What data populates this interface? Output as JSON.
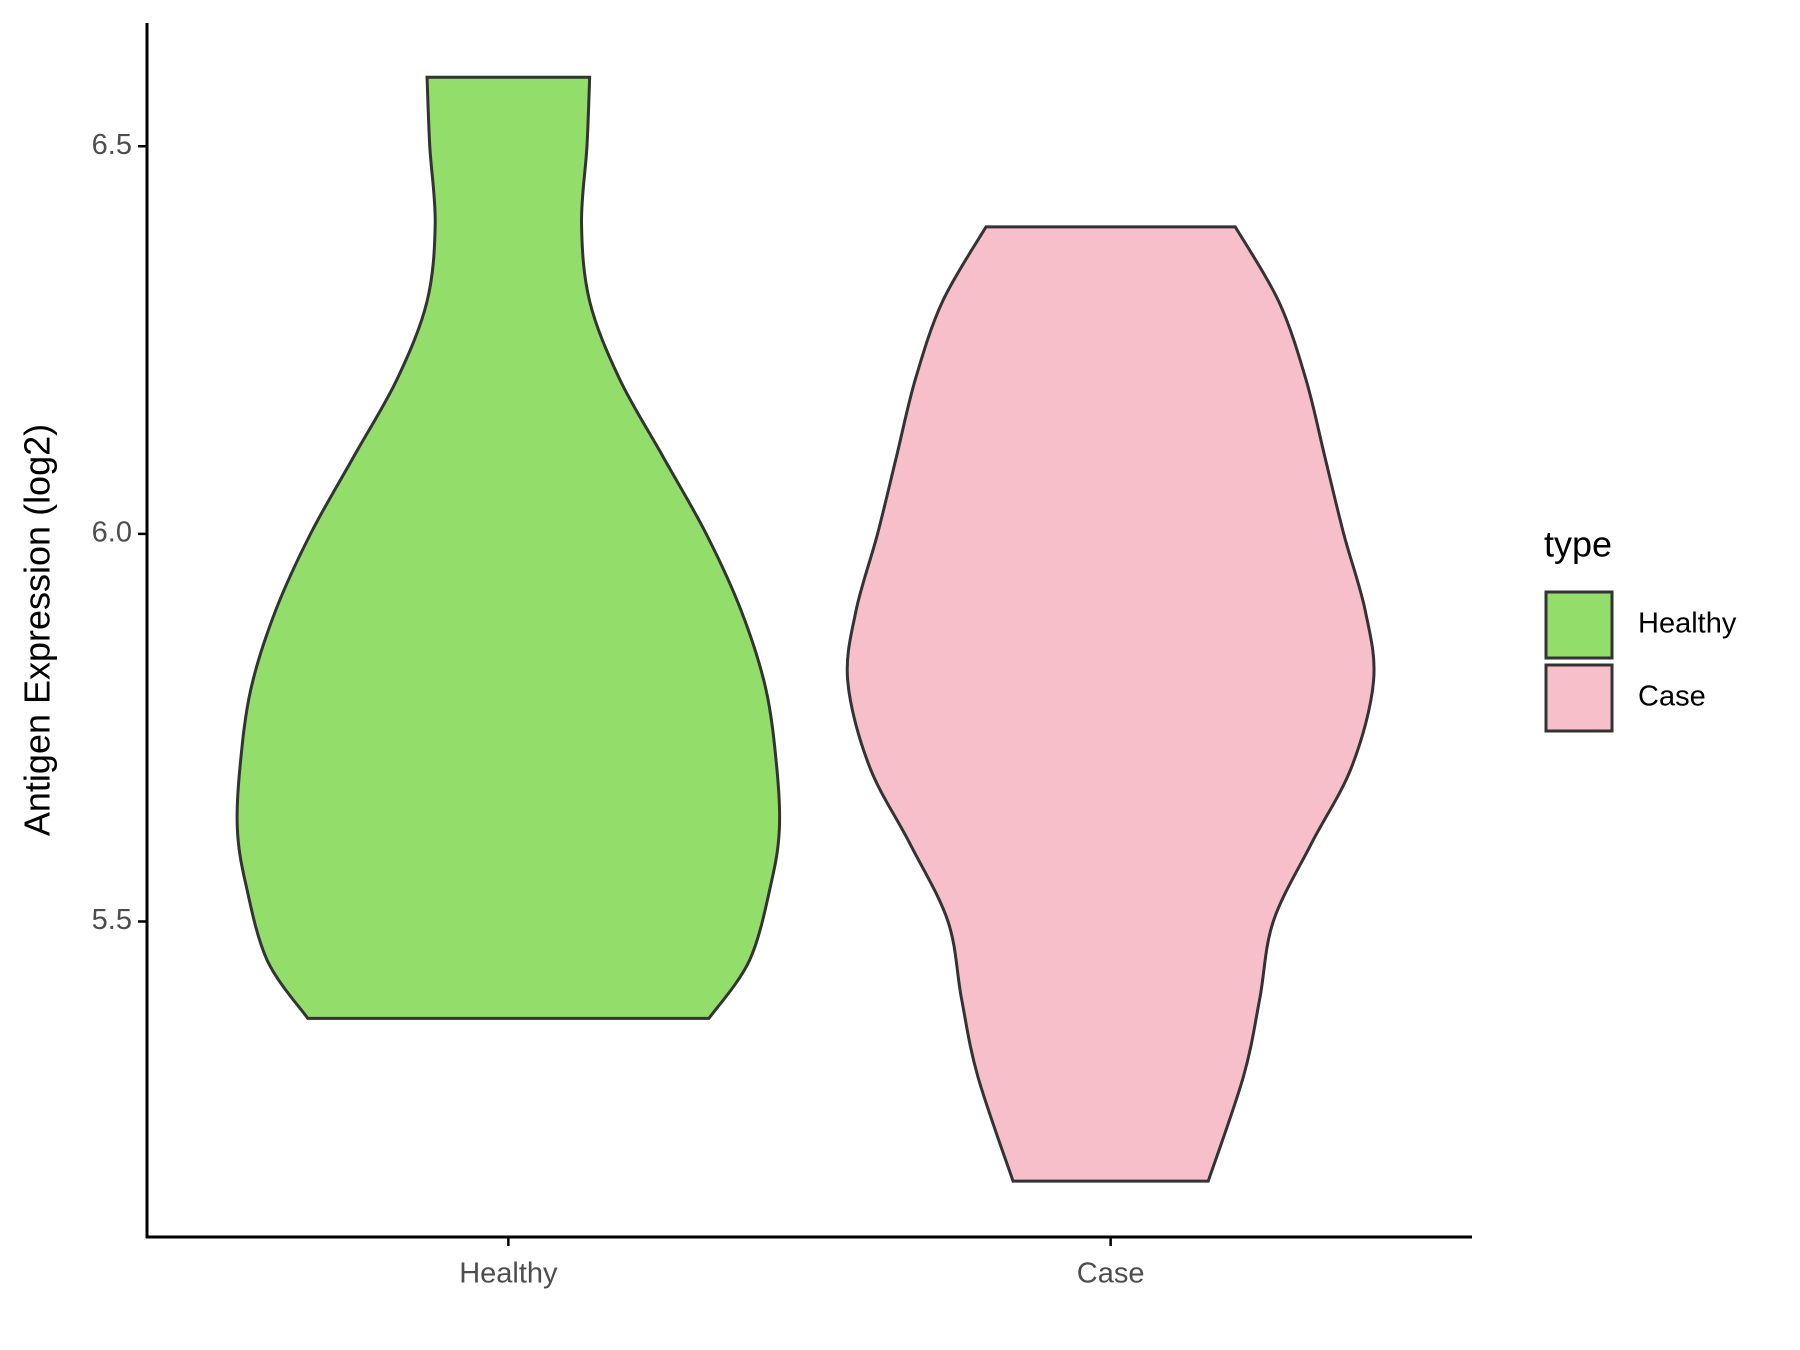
{
  "chart_data": {
    "type": "violin",
    "y_label": "Antigen Expression (log2)",
    "legend_title": "type",
    "categories": [
      "Healthy",
      "Case"
    ],
    "ylim": [
      5.093,
      6.659
    ],
    "yticks": [
      {
        "value": 5.5,
        "label": "5.5"
      },
      {
        "value": 6.0,
        "label": "6.0"
      },
      {
        "value": 6.5,
        "label": "6.5"
      }
    ],
    "series": [
      {
        "name": "Healthy",
        "color": "#93dd6b",
        "y": [
          6.589,
          6.5,
          6.4,
          6.3,
          6.2,
          6.1,
          6.0,
          5.9,
          5.8,
          5.7,
          5.62,
          5.55,
          5.45,
          5.375
        ],
        "density": [
          0.3,
          0.29,
          0.27,
          0.3,
          0.41,
          0.57,
          0.73,
          0.86,
          0.95,
          0.99,
          1.0,
          0.97,
          0.89,
          0.74
        ]
      },
      {
        "name": "Case",
        "color": "#f7bfca",
        "y": [
          6.396,
          6.3,
          6.2,
          6.1,
          6.0,
          5.9,
          5.81,
          5.7,
          5.6,
          5.5,
          5.4,
          5.3,
          5.165
        ],
        "density": [
          0.46,
          0.62,
          0.72,
          0.79,
          0.86,
          0.94,
          0.97,
          0.89,
          0.74,
          0.6,
          0.55,
          0.49,
          0.36
        ]
      }
    ]
  }
}
